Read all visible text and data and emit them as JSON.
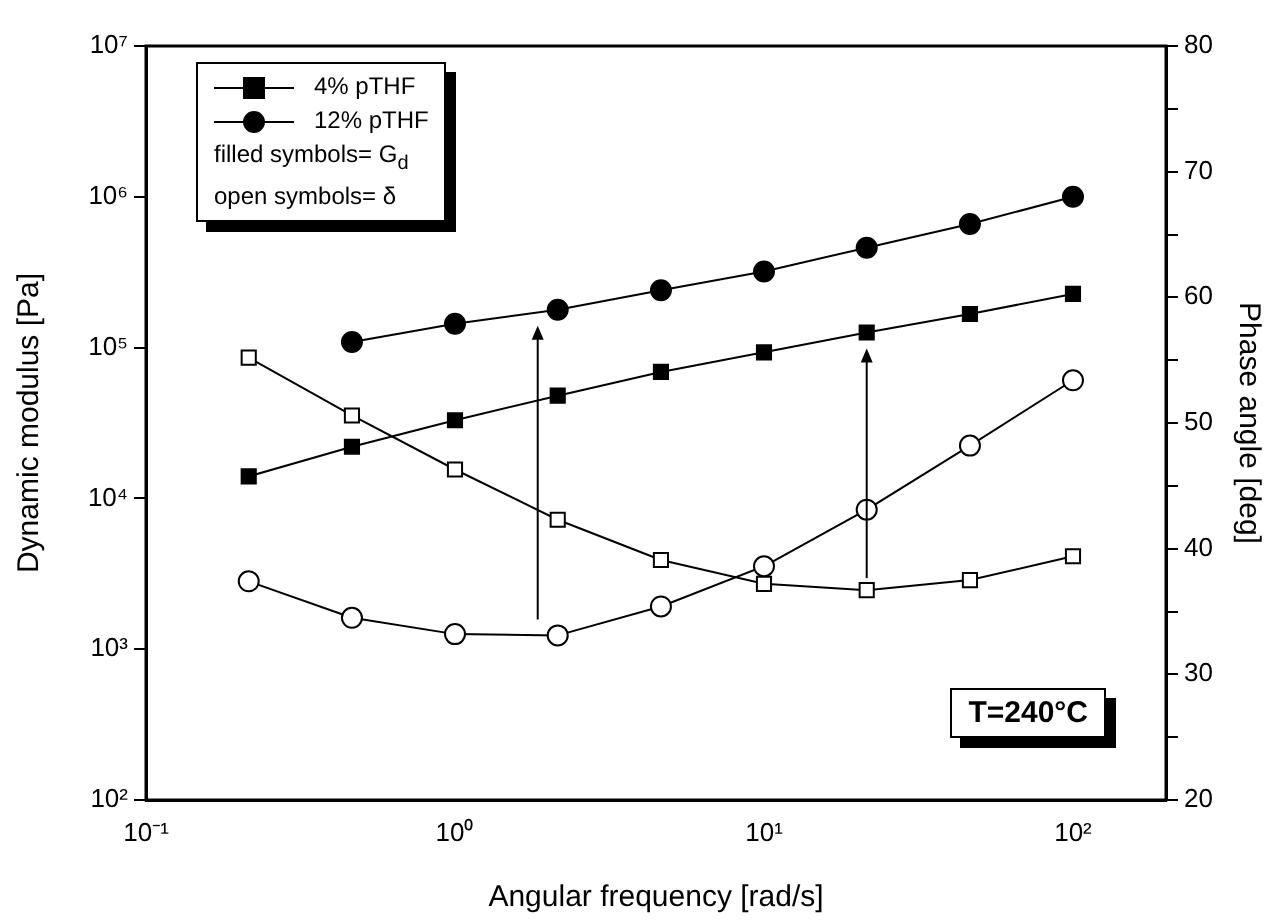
{
  "chart_data": {
    "type": "line",
    "xlabel": "Angular frequency [rad/s]",
    "ylabel": "Dynamic modulus [Pa]",
    "y2label": "Phase angle [deg]",
    "log": "xy",
    "legend": "top left",
    "grid": false,
    "x": [
      0.215,
      0.464,
      1,
      2.15,
      4.64,
      10,
      21.5,
      46.4,
      100
    ],
    "series": [
      {
        "name": "4% pTHF",
        "color": "#000000",
        "marker": "square",
        "values": [
          14000,
          22000,
          33000,
          48000,
          69000,
          93000,
          126000,
          167000,
          227000
        ]
      },
      {
        "name": "12% pTHF",
        "color": "#000000",
        "marker": "circle",
        "values": [
          null,
          109000,
          144000,
          178000,
          240000,
          320000,
          460000,
          660000,
          1000000
        ]
      },
      {
        "color": "#000000",
        "marker": "square",
        "axis": "y2",
        "values": [
          55.2,
          50.6,
          46.3,
          42.3,
          39.1,
          37.2,
          36.7,
          37.5,
          39.4
        ]
      },
      {
        "color": "#000000",
        "marker": "circle",
        "axis": "y2",
        "values": [
          37.4,
          34.5,
          33.2,
          33.1,
          35.4,
          38.6,
          43.1,
          48.2,
          53.4
        ]
      }
    ],
    "xlim": [
      0.1,
      200
    ],
    "xticks": [
      {
        "value": 0.1,
        "label": "10⁻¹"
      },
      {
        "value": 1,
        "label": "10⁰"
      },
      {
        "value": 10,
        "label": "10¹"
      },
      {
        "value": 100,
        "label": "10²"
      }
    ],
    "ylim": [
      100,
      10000000
    ],
    "yticks": [
      {
        "value": 100,
        "label": "10²"
      },
      {
        "value": 1000,
        "label": "10³"
      },
      {
        "value": 10000,
        "label": "10⁴"
      },
      {
        "value": 100000,
        "label": "10⁵"
      },
      {
        "value": 1000000,
        "label": "10⁶"
      },
      {
        "value": 10000000,
        "label": "10⁷"
      }
    ],
    "y2lim": [
      20,
      80
    ],
    "y2ticks": [
      {
        "value": 20,
        "label": "20"
      },
      {
        "value": 25,
        "label": null
      },
      {
        "value": 30,
        "label": "30"
      },
      {
        "value": 35,
        "label": null
      },
      {
        "value": 40,
        "label": "40"
      },
      {
        "value": 45,
        "label": null
      },
      {
        "value": 50,
        "label": "50"
      },
      {
        "value": 55,
        "label": null
      },
      {
        "value": 60,
        "label": "60"
      },
      {
        "value": 65,
        "label": null
      },
      {
        "value": 70,
        "label": "70"
      },
      {
        "value": 75,
        "label": null
      },
      {
        "value": 80,
        "label": "80"
      }
    ],
    "annotations": [
      "filled symbols= G$_{d}$",
      "open symbols= δ",
      "T=240°C"
    ]
  }
}
